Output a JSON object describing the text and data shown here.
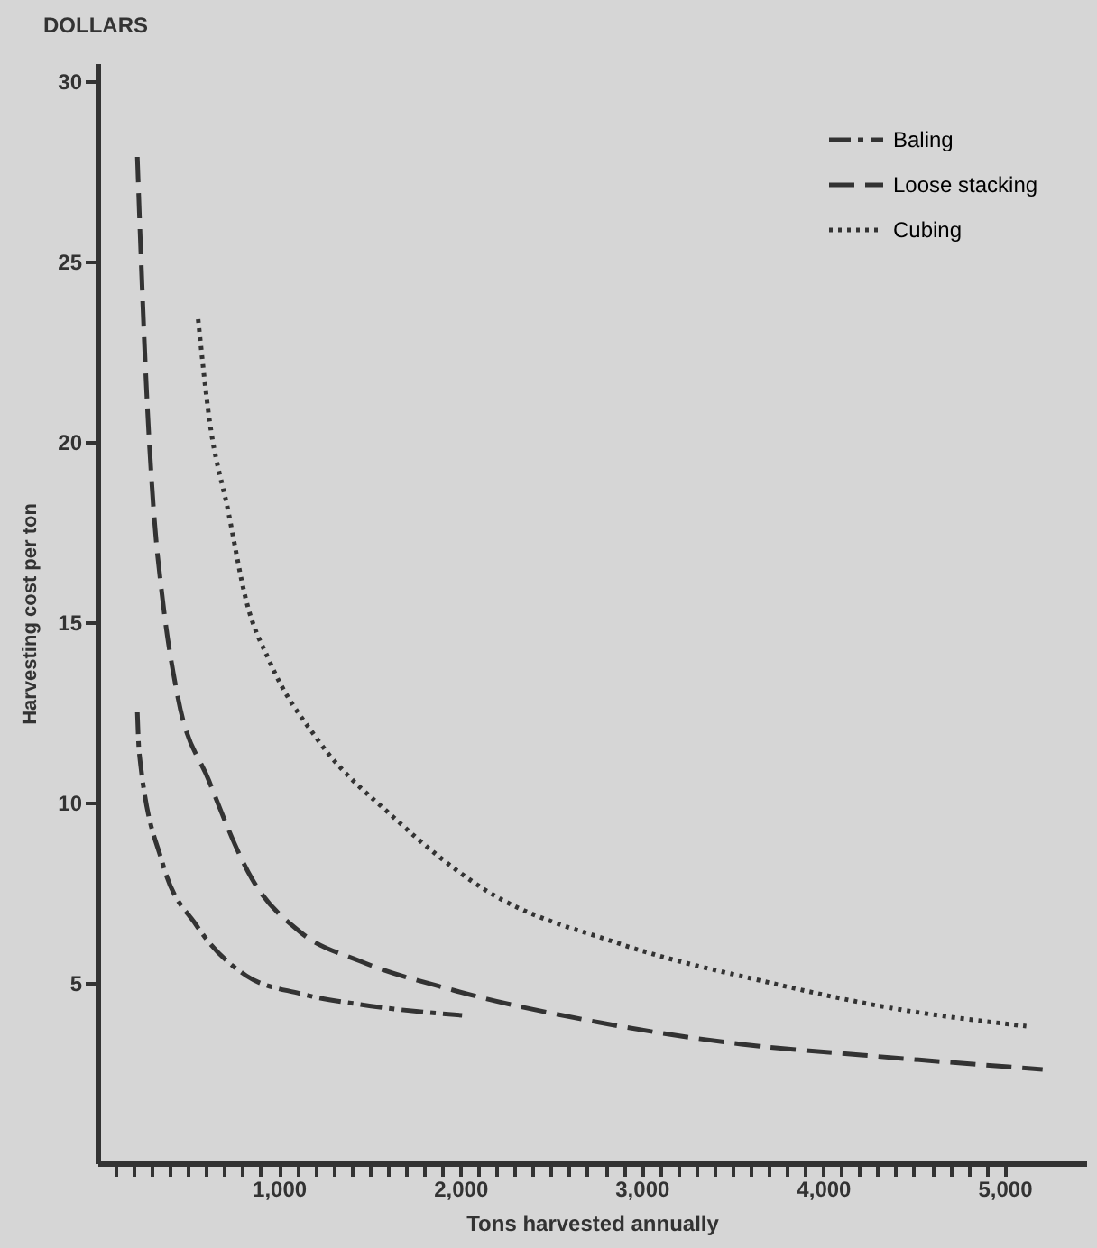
{
  "chart_data": {
    "type": "line",
    "xlabel": "Tons harvested annually",
    "ylabel": "Harvesting cost per ton",
    "annotations": [
      "DOLLARS"
    ],
    "xlim": [
      0,
      5450
    ],
    "ylim": [
      0,
      30.5
    ],
    "xticks": [
      {
        "value": 100,
        "label": null
      },
      {
        "value": 200,
        "label": null
      },
      {
        "value": 300,
        "label": null
      },
      {
        "value": 400,
        "label": null
      },
      {
        "value": 500,
        "label": null
      },
      {
        "value": 600,
        "label": null
      },
      {
        "value": 700,
        "label": null
      },
      {
        "value": 800,
        "label": null
      },
      {
        "value": 900,
        "label": null
      },
      {
        "value": 1000,
        "label": "1,000"
      },
      {
        "value": 1100,
        "label": null
      },
      {
        "value": 1200,
        "label": null
      },
      {
        "value": 1300,
        "label": null
      },
      {
        "value": 1400,
        "label": null
      },
      {
        "value": 1500,
        "label": null
      },
      {
        "value": 1600,
        "label": null
      },
      {
        "value": 1700,
        "label": null
      },
      {
        "value": 1800,
        "label": null
      },
      {
        "value": 1900,
        "label": null
      },
      {
        "value": 2000,
        "label": "2,000"
      },
      {
        "value": 2100,
        "label": null
      },
      {
        "value": 2200,
        "label": null
      },
      {
        "value": 2300,
        "label": null
      },
      {
        "value": 2400,
        "label": null
      },
      {
        "value": 2500,
        "label": null
      },
      {
        "value": 2600,
        "label": null
      },
      {
        "value": 2700,
        "label": null
      },
      {
        "value": 2800,
        "label": null
      },
      {
        "value": 2900,
        "label": null
      },
      {
        "value": 3000,
        "label": "3,000"
      },
      {
        "value": 3100,
        "label": null
      },
      {
        "value": 3200,
        "label": null
      },
      {
        "value": 3300,
        "label": null
      },
      {
        "value": 3400,
        "label": null
      },
      {
        "value": 3500,
        "label": null
      },
      {
        "value": 3600,
        "label": null
      },
      {
        "value": 3700,
        "label": null
      },
      {
        "value": 3800,
        "label": null
      },
      {
        "value": 3900,
        "label": null
      },
      {
        "value": 4000,
        "label": "4,000"
      },
      {
        "value": 4100,
        "label": null
      },
      {
        "value": 4200,
        "label": null
      },
      {
        "value": 4300,
        "label": null
      },
      {
        "value": 4400,
        "label": null
      },
      {
        "value": 4500,
        "label": null
      },
      {
        "value": 4600,
        "label": null
      },
      {
        "value": 4700,
        "label": null
      },
      {
        "value": 4800,
        "label": null
      },
      {
        "value": 4900,
        "label": null
      },
      {
        "value": 5000,
        "label": "5,000"
      }
    ],
    "yticks": [
      5,
      10,
      15,
      20,
      25,
      30
    ],
    "grid": false,
    "legend": "top right",
    "series": [
      {
        "name": "Baling",
        "color": "#333333",
        "line_style": "dashdot",
        "x": [
          220,
          230,
          360,
          545,
          820,
          1120,
          1450,
          2010
        ],
        "values": [
          12.5,
          11.4,
          8.3,
          6.6,
          5.2,
          4.7,
          4.4,
          4.1
        ]
      },
      {
        "name": "Loose stacking",
        "color": "#333333",
        "line_style": "dashed",
        "x": [
          220,
          270,
          310,
          360,
          440,
          615,
          850,
          1120,
          1450,
          1960,
          2770,
          3550,
          4210,
          5210
        ],
        "values": [
          27.9,
          21.5,
          18.1,
          15.6,
          13.0,
          10.6,
          7.9,
          6.4,
          5.6,
          4.8,
          3.9,
          3.3,
          3.0,
          2.6
        ]
      },
      {
        "name": "Cubing",
        "color": "#333333",
        "line_style": "dotted",
        "x": [
          555,
          615,
          720,
          820,
          950,
          1220,
          1630,
          2130,
          2870,
          3710,
          4380,
          5120
        ],
        "values": [
          23.4,
          20.7,
          18.1,
          15.6,
          13.9,
          11.7,
          9.6,
          7.6,
          6.1,
          5.0,
          4.3,
          3.8
        ]
      }
    ]
  }
}
